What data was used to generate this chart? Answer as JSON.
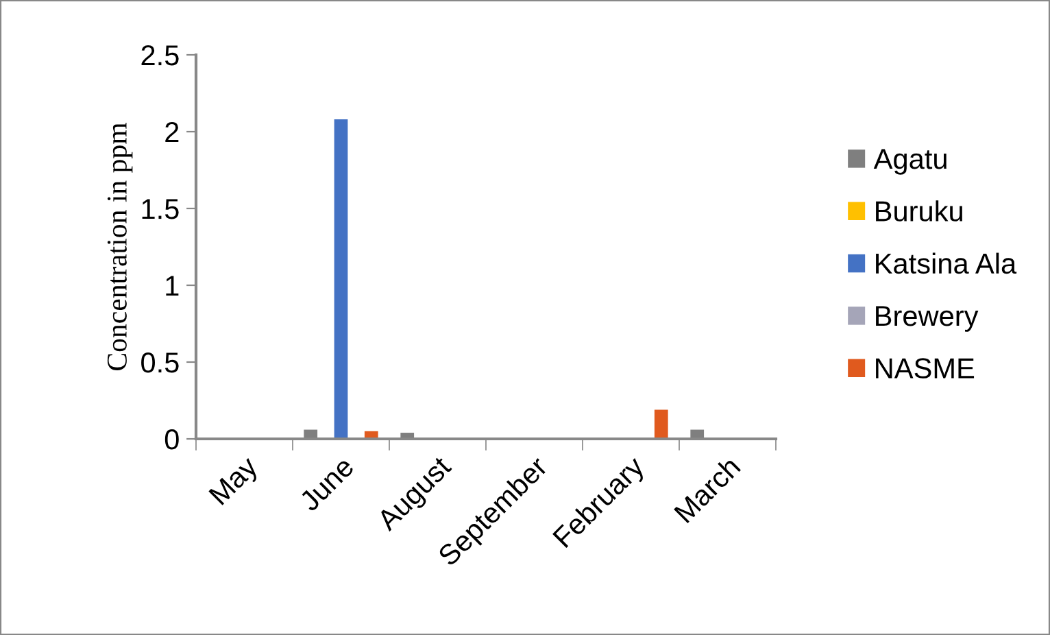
{
  "chart_data": {
    "type": "bar",
    "ylabel": "Concentration in ppm",
    "categories": [
      "May",
      "June",
      "August",
      "September",
      "February",
      "March"
    ],
    "series": [
      {
        "name": "Agatu",
        "color": "#7f7f7f",
        "values": [
          0,
          0.06,
          0.04,
          0,
          0,
          0.06
        ]
      },
      {
        "name": "Buruku",
        "color": "#ffc000",
        "values": [
          0,
          0,
          0,
          0,
          0,
          0
        ]
      },
      {
        "name": "Katsina Ala",
        "color": "#4472c4",
        "values": [
          0,
          2.08,
          0,
          0,
          0,
          0
        ]
      },
      {
        "name": "Brewery",
        "color": "#a5a5b8",
        "values": [
          0,
          0,
          0,
          0,
          0,
          0
        ]
      },
      {
        "name": "NASME",
        "color": "#e05a1e",
        "values": [
          0,
          0.05,
          0,
          0,
          0.19,
          0
        ]
      }
    ],
    "ylim": [
      0,
      2.5
    ],
    "yticks": [
      0,
      0.5,
      1,
      1.5,
      2,
      2.5
    ],
    "grid": false,
    "legend": "right"
  }
}
